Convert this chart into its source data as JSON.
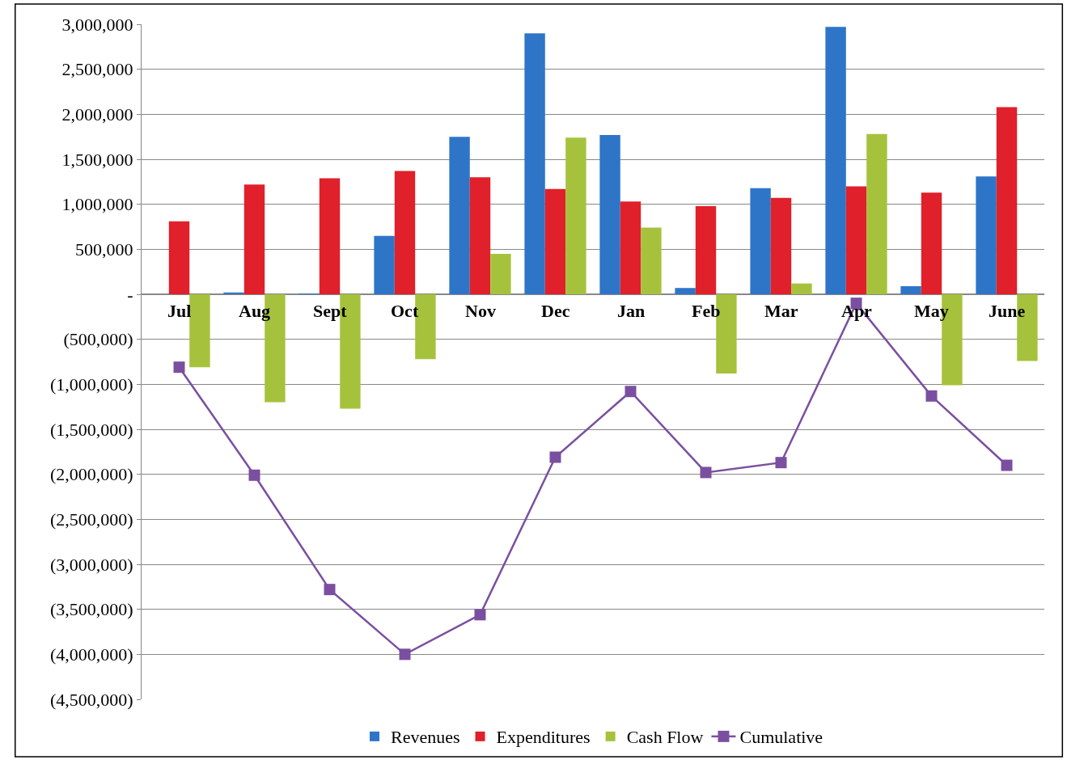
{
  "chart_data": {
    "type": "bar",
    "categories": [
      "Jul",
      "Aug",
      "Sept",
      "Oct",
      "Nov",
      "Dec",
      "Jan",
      "Feb",
      "Mar",
      "Apr",
      "May",
      "June"
    ],
    "series": [
      {
        "name": "Revenues",
        "color": "#2e75c8",
        "values": [
          0,
          20000,
          5000,
          650000,
          1750000,
          2900000,
          1770000,
          70000,
          1180000,
          2970000,
          90000,
          1310000
        ]
      },
      {
        "name": "Expenditures",
        "color": "#e0202a",
        "values": [
          810000,
          1220000,
          1290000,
          1370000,
          1300000,
          1170000,
          1030000,
          980000,
          1070000,
          1200000,
          1130000,
          2080000
        ]
      },
      {
        "name": "Cash Flow",
        "color": "#a6c23c",
        "values": [
          -810000,
          -1200000,
          -1270000,
          -720000,
          450000,
          1740000,
          740000,
          -880000,
          120000,
          1780000,
          -1010000,
          -740000
        ]
      },
      {
        "name": "Cumulative",
        "color": "#7b4fa0",
        "type": "line",
        "marker": "square",
        "values": [
          -810000,
          -2010000,
          -3280000,
          -4000000,
          -3560000,
          -1810000,
          -1080000,
          -1980000,
          -1870000,
          -100000,
          -1130000,
          -1900000
        ]
      }
    ],
    "ylim": [
      -4500000,
      3000000
    ],
    "yticks": [
      {
        "value": -4500000,
        "label": "(4,500,000)"
      },
      {
        "value": -4000000,
        "label": "(4,000,000)"
      },
      {
        "value": -3500000,
        "label": "(3,500,000)"
      },
      {
        "value": -3000000,
        "label": "(3,000,000)"
      },
      {
        "value": -2500000,
        "label": "(2,500,000)"
      },
      {
        "value": -2000000,
        "label": "(2,000,000)"
      },
      {
        "value": -1500000,
        "label": "(1,500,000)"
      },
      {
        "value": -1000000,
        "label": "(1,000,000)"
      },
      {
        "value": -500000,
        "label": "(500,000)"
      },
      {
        "value": 0,
        "label": "-"
      },
      {
        "value": 500000,
        "label": "500,000"
      },
      {
        "value": 1000000,
        "label": "1,000,000"
      },
      {
        "value": 1500000,
        "label": "1,500,000"
      },
      {
        "value": 2000000,
        "label": "2,000,000"
      },
      {
        "value": 2500000,
        "label": "2,500,000"
      },
      {
        "value": 3000000,
        "label": "3,000,000"
      }
    ],
    "grid": "y",
    "legend": "bottom"
  }
}
